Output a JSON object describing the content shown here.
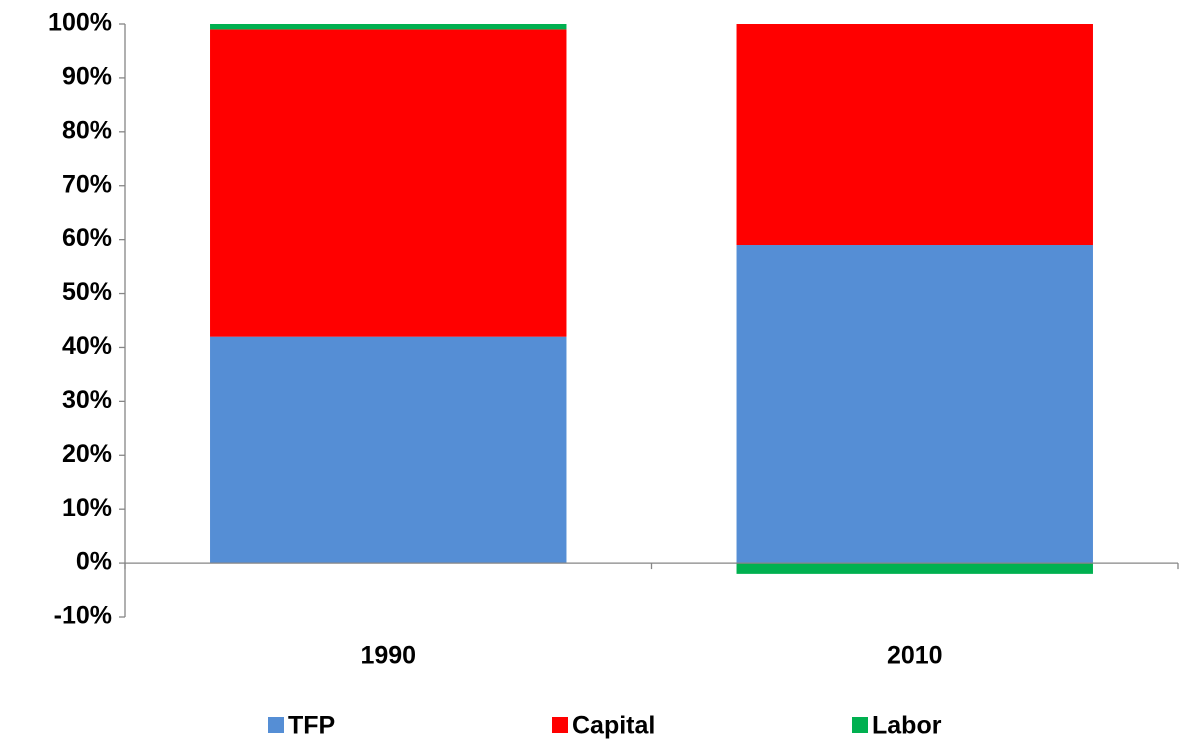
{
  "chart_data": {
    "type": "stacked_bar",
    "categories": [
      "1990",
      "2010"
    ],
    "series": [
      {
        "name": "TFP",
        "color": "#558ed5",
        "values": [
          42,
          59
        ]
      },
      {
        "name": "Capital",
        "color": "#ff0000",
        "values": [
          57,
          41
        ]
      },
      {
        "name": "Labor",
        "color": "#00b050",
        "values": [
          1,
          -2
        ]
      }
    ],
    "ylim": [
      -10,
      100
    ],
    "yticks": [
      {
        "value": -10,
        "label": "-10%"
      },
      {
        "value": 0,
        "label": "0%"
      },
      {
        "value": 10,
        "label": "10%"
      },
      {
        "value": 20,
        "label": "20%"
      },
      {
        "value": 30,
        "label": "30%"
      },
      {
        "value": 40,
        "label": "40%"
      },
      {
        "value": 50,
        "label": "50%"
      },
      {
        "value": 60,
        "label": "60%"
      },
      {
        "value": 70,
        "label": "70%"
      },
      {
        "value": 80,
        "label": "80%"
      },
      {
        "value": 90,
        "label": "90%"
      },
      {
        "value": 100,
        "label": "100%"
      }
    ],
    "grid": false,
    "legend": "bottom"
  }
}
